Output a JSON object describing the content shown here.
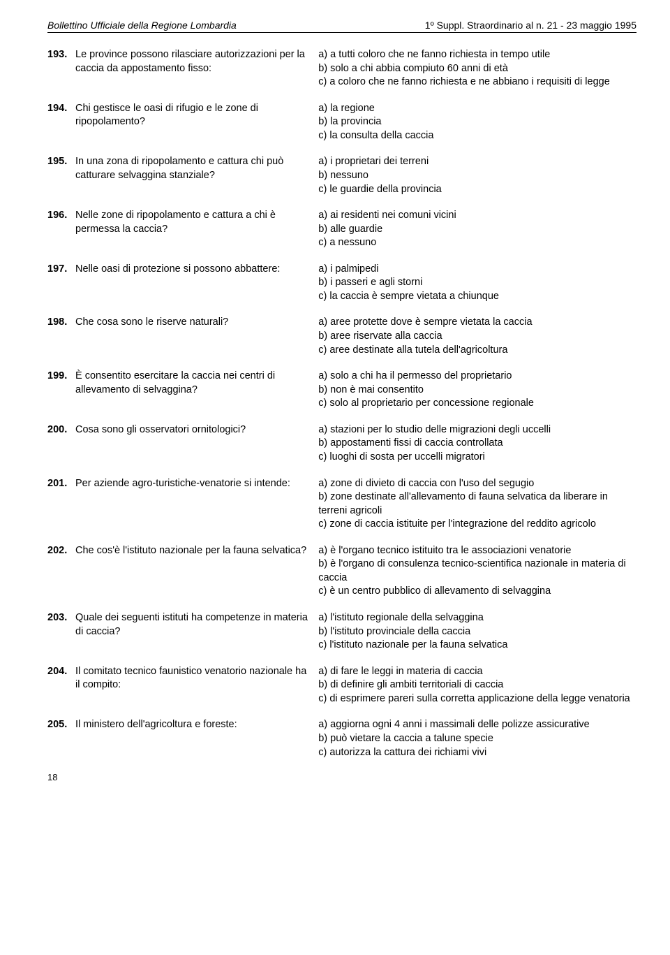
{
  "header": {
    "left": "Bollettino Ufficiale della Regione Lombardia",
    "right": "1º Suppl. Straordinario al n. 21 - 23 maggio 1995"
  },
  "items": [
    {
      "num": "193.",
      "q": "Le province possono rilasciare autorizzazioni per la caccia da appostamento fisso:",
      "a": [
        "a) a tutti coloro che ne fanno richiesta in tempo utile",
        "b) solo a chi abbia compiuto 60 anni di età",
        "c) a coloro che ne fanno richiesta e ne abbiano i requisiti di legge"
      ]
    },
    {
      "num": "194.",
      "q": "Chi gestisce le oasi di rifugio e le zone di ripopolamento?",
      "a": [
        "a) la regione",
        "b) la provincia",
        "c) la consulta della caccia"
      ]
    },
    {
      "num": "195.",
      "q": "In una zona di ripopolamento e cattura chi può catturare selvaggina stanziale?",
      "a": [
        "a) i proprietari dei terreni",
        "b) nessuno",
        "c) le guardie della provincia"
      ]
    },
    {
      "num": "196.",
      "q": "Nelle zone di ripopolamento e cattura a chi è permessa la caccia?",
      "a": [
        "a) ai residenti nei comuni vicini",
        "b) alle guardie",
        "c) a nessuno"
      ]
    },
    {
      "num": "197.",
      "q": "Nelle oasi di protezione si possono abbattere:",
      "a": [
        "a) i palmipedi",
        "b) i passeri e agli storni",
        "c) la caccia è sempre vietata a chiunque"
      ]
    },
    {
      "num": "198.",
      "q": "Che cosa sono le riserve naturali?",
      "a": [
        "a) aree protette dove è sempre vietata la caccia",
        "b) aree riservate alla caccia",
        "c) aree destinate alla tutela dell'agricoltura"
      ]
    },
    {
      "num": "199.",
      "q": "È consentito esercitare la caccia nei centri di allevamento di selvaggina?",
      "a": [
        "a) solo a chi ha il permesso del proprietario",
        "b) non è mai consentito",
        "c) solo al proprietario per concessione regionale"
      ]
    },
    {
      "num": "200.",
      "q": "Cosa sono gli osservatori ornitologici?",
      "a": [
        "a) stazioni per lo studio delle migrazioni degli uccelli",
        "b) appostamenti fissi di caccia controllata",
        "c) luoghi di sosta per uccelli migratori"
      ]
    },
    {
      "num": "201.",
      "q": "Per aziende agro-turistiche-venatorie si intende:",
      "a": [
        "a) zone di divieto di caccia con l'uso del segugio",
        "b) zone destinate all'allevamento di fauna selvatica da liberare in terreni agricoli",
        "c) zone di caccia istituite per l'integrazione del reddito agricolo"
      ]
    },
    {
      "num": "202.",
      "q": "Che cos'è l'istituto nazionale per la fauna selvatica?",
      "a": [
        "a) è l'organo tecnico istituito tra le associazioni venatorie",
        "b) è l'organo di consulenza tecnico-scientifica nazionale in materia di caccia",
        "c) è un centro pubblico di allevamento di selvaggina"
      ]
    },
    {
      "num": "203.",
      "q": "Quale dei seguenti istituti ha competenze in materia di caccia?",
      "a": [
        "a) l'istituto regionale della selvaggina",
        "b) l'istituto provinciale della caccia",
        "c) l'istituto nazionale per la fauna selvatica"
      ]
    },
    {
      "num": "204.",
      "q": "Il comitato tecnico faunistico venatorio nazionale ha il compito:",
      "a": [
        "a) di fare le leggi in materia di caccia",
        "b) di definire gli ambiti territoriali di caccia",
        "c) di esprimere pareri sulla corretta applicazione della legge venatoria"
      ]
    },
    {
      "num": "205.",
      "q": "Il ministero dell'agricoltura e foreste:",
      "a": [
        "a) aggiorna ogni 4 anni i massimali delle polizze assicurative",
        "b) può vietare la caccia a talune specie",
        "c) autorizza la cattura dei richiami vivi"
      ]
    }
  ],
  "pageNumber": "18"
}
